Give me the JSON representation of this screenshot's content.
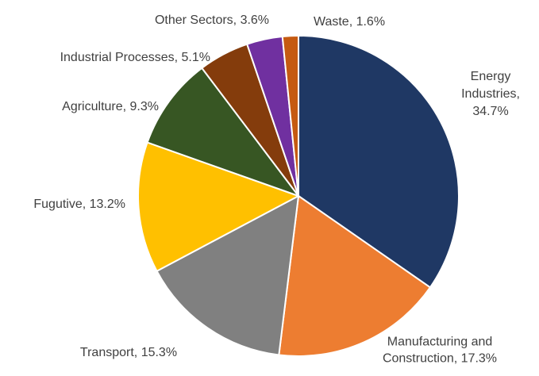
{
  "chart_data": {
    "type": "pie",
    "title": "",
    "slices": [
      {
        "name": "Energy Industries",
        "value": 34.7,
        "color": "#1f3864",
        "label_lines": [
          "Energy",
          "Industries,",
          "34.7%"
        ]
      },
      {
        "name": "Manufacturing and Construction",
        "value": 17.3,
        "color": "#ed7d31",
        "label_lines": [
          "Manufacturing and",
          "Construction, 17.3%"
        ]
      },
      {
        "name": "Transport",
        "value": 15.3,
        "color": "#808080",
        "label_lines": [
          "Transport, 15.3%"
        ]
      },
      {
        "name": "Fugutive",
        "value": 13.2,
        "color": "#ffc000",
        "label_lines": [
          "Fugutive, 13.2%"
        ]
      },
      {
        "name": "Agriculture",
        "value": 9.3,
        "color": "#375623",
        "label_lines": [
          "Agriculture, 9.3%"
        ]
      },
      {
        "name": "Industrial Processes",
        "value": 5.1,
        "color": "#843c0c",
        "label_lines": [
          "Industrial Processes, 5.1%"
        ]
      },
      {
        "name": "Other Sectors",
        "value": 3.6,
        "color": "#7030a0",
        "label_lines": [
          "Other Sectors, 3.6%"
        ]
      },
      {
        "name": "Waste",
        "value": 1.6,
        "color": "#c55a11",
        "label_lines": [
          "Waste, 1.6%"
        ]
      }
    ],
    "start": "12 o'clock",
    "direction": "clockwise",
    "legend": "none"
  }
}
